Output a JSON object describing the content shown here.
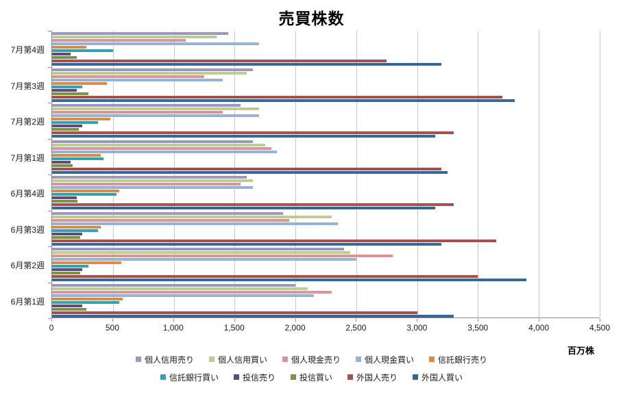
{
  "chart_data": {
    "type": "bar",
    "orientation": "horizontal",
    "title": "売買株数",
    "xlabel": "百万株",
    "xlim": [
      0,
      4500
    ],
    "grid": true,
    "legend_position": "bottom",
    "x_tick_values": [
      0,
      500,
      1000,
      1500,
      2000,
      2500,
      3000,
      3500,
      4000,
      4500
    ],
    "x_tick_labels": [
      "0",
      "500",
      "1,000",
      "1,500",
      "2,000",
      "2,500",
      "3,000",
      "3,500",
      "4,000",
      "4,500"
    ],
    "categories": [
      "7月第4週",
      "7月第3週",
      "7月第2週",
      "7月第1週",
      "6月第4週",
      "6月第3週",
      "6月第2週",
      "6月第1週"
    ],
    "series": [
      {
        "name": "個人信用売り",
        "color": "#9b99c2",
        "values": [
          1450,
          1650,
          1550,
          1650,
          1600,
          1900,
          2400,
          2000
        ]
      },
      {
        "name": "個人信用買い",
        "color": "#bccc92",
        "values": [
          1350,
          1600,
          1700,
          1750,
          1650,
          2300,
          2450,
          2100
        ]
      },
      {
        "name": "個人現金売り",
        "color": "#d99694",
        "values": [
          1100,
          1250,
          1400,
          1800,
          1550,
          1950,
          2800,
          2300
        ]
      },
      {
        "name": "個人現金買い",
        "color": "#95b3d7",
        "values": [
          1700,
          1400,
          1700,
          1850,
          1650,
          2350,
          2500,
          2150
        ]
      },
      {
        "name": "信託銀行売り",
        "color": "#dc8a44",
        "values": [
          280,
          450,
          480,
          400,
          550,
          400,
          570,
          580
        ]
      },
      {
        "name": "信託銀行買い",
        "color": "#33a0b5",
        "values": [
          500,
          250,
          380,
          420,
          530,
          380,
          300,
          550
        ]
      },
      {
        "name": "投信売り",
        "color": "#5f4a7e",
        "values": [
          150,
          200,
          250,
          150,
          200,
          250,
          250,
          250
        ]
      },
      {
        "name": "投信買い",
        "color": "#7a9340",
        "values": [
          200,
          300,
          220,
          170,
          210,
          230,
          230,
          280
        ]
      },
      {
        "name": "外国人売り",
        "color": "#a5504c",
        "values": [
          2750,
          3700,
          3300,
          3200,
          3300,
          3650,
          3500,
          3000
        ]
      },
      {
        "name": "外国人買い",
        "color": "#35679b",
        "values": [
          3200,
          3800,
          3150,
          3250,
          3150,
          3200,
          3900,
          3300
        ]
      }
    ]
  }
}
